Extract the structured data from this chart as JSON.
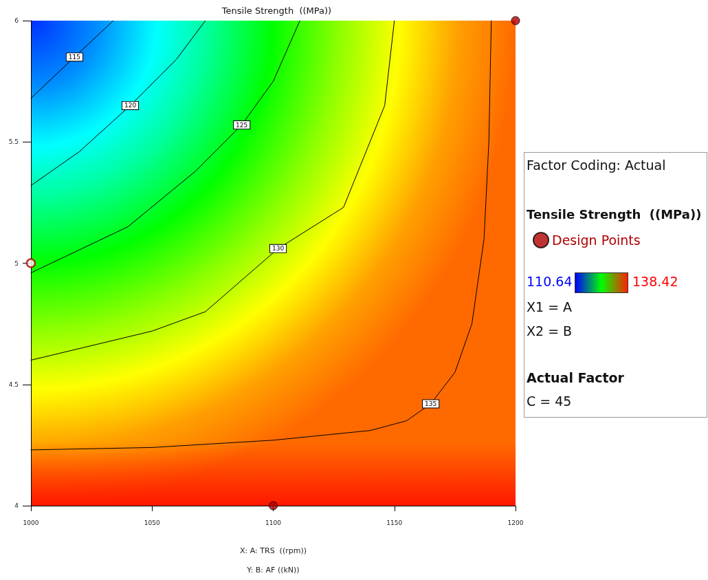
{
  "chart_data": {
    "type": "line",
    "title": "Tensile Strength  ((MPa))",
    "xlabel": "X: A: TRS  ((rpm))",
    "legend_title": "Tensile Strength  ((MPa))",
    "xlim": [
      1000,
      1200
    ],
    "xticks": [
      1000,
      1050,
      1100,
      1150,
      1200
    ],
    "ylim": [
      4,
      6
    ],
    "yticks": [
      4,
      4.5,
      5,
      5.5,
      6
    ],
    "grid": false,
    "legend": "right",
    "annotations": [
      "Factor Coding: Actual",
      "110.64",
      "138.42",
      "X1 = A",
      "X2 = B",
      "Actual Factor",
      "C = 45",
      "Y: B: AF  ((kN))"
    ],
    "series": [
      {
        "name": "115",
        "color": "#000000",
        "x": [
          1000,
          1018,
          1034
        ],
        "values": [
          5.68,
          5.85,
          6
        ]
      },
      {
        "name": "120",
        "color": "#000000",
        "x": [
          1000,
          1020,
          1041,
          1060,
          1072
        ],
        "values": [
          5.32,
          5.46,
          5.65,
          5.84,
          6
        ]
      },
      {
        "name": "125",
        "color": "#000000",
        "x": [
          1000,
          1040,
          1068,
          1087,
          1100,
          1111
        ],
        "values": [
          4.96,
          5.15,
          5.38,
          5.57,
          5.75,
          6
        ]
      },
      {
        "name": "130",
        "color": "#000000",
        "x": [
          1000,
          1050,
          1072,
          1102,
          1129,
          1146,
          1150
        ],
        "values": [
          4.6,
          4.72,
          4.8,
          5.06,
          5.23,
          5.65,
          6
        ]
      },
      {
        "name": "135",
        "color": "#000000",
        "x": [
          1000,
          1050,
          1100,
          1140,
          1155,
          1165,
          1175,
          1182,
          1187,
          1189,
          1190
        ],
        "values": [
          4.23,
          4.24,
          4.27,
          4.31,
          4.35,
          4.42,
          4.55,
          4.75,
          5.1,
          5.5,
          6
        ]
      },
      {
        "type": "scatter",
        "name": "Design Points",
        "color": "#b00000",
        "colors": [
          "#ffffff",
          "#b00000",
          "#b00000"
        ],
        "x": [
          1000,
          1100,
          1200
        ],
        "values": [
          5,
          4,
          6
        ]
      }
    ]
  }
}
